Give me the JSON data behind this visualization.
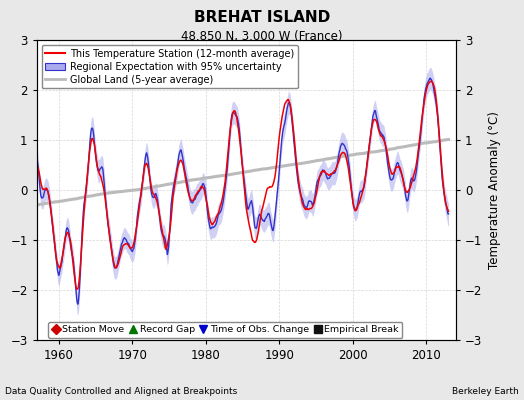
{
  "title": "BREHAT ISLAND",
  "subtitle": "48.850 N, 3.000 W (France)",
  "xlabel_left": "Data Quality Controlled and Aligned at Breakpoints",
  "xlabel_right": "Berkeley Earth",
  "ylabel": "Temperature Anomaly (°C)",
  "xlim": [
    1957,
    2014
  ],
  "ylim": [
    -3,
    3
  ],
  "yticks": [
    -3,
    -2,
    -1,
    0,
    1,
    2,
    3
  ],
  "xticks": [
    1960,
    1970,
    1980,
    1990,
    2000,
    2010
  ],
  "background_color": "#e8e8e8",
  "plot_bg_color": "#ffffff",
  "legend_items": [
    {
      "label": "This Temperature Station (12-month average)",
      "color": "#ee0000",
      "lw": 1.5
    },
    {
      "label": "Regional Expectation with 95% uncertainty",
      "color": "#3333cc",
      "lw": 1.2
    },
    {
      "label": "Global Land (5-year average)",
      "color": "#aaaaaa",
      "lw": 2.0
    }
  ],
  "marker_legend": [
    {
      "marker": "D",
      "color": "#cc0000",
      "label": "Station Move"
    },
    {
      "marker": "^",
      "color": "#007700",
      "label": "Record Gap"
    },
    {
      "marker": "v",
      "color": "#0000cc",
      "label": "Time of Obs. Change"
    },
    {
      "marker": "s",
      "color": "#111111",
      "label": "Empirical Break"
    }
  ]
}
